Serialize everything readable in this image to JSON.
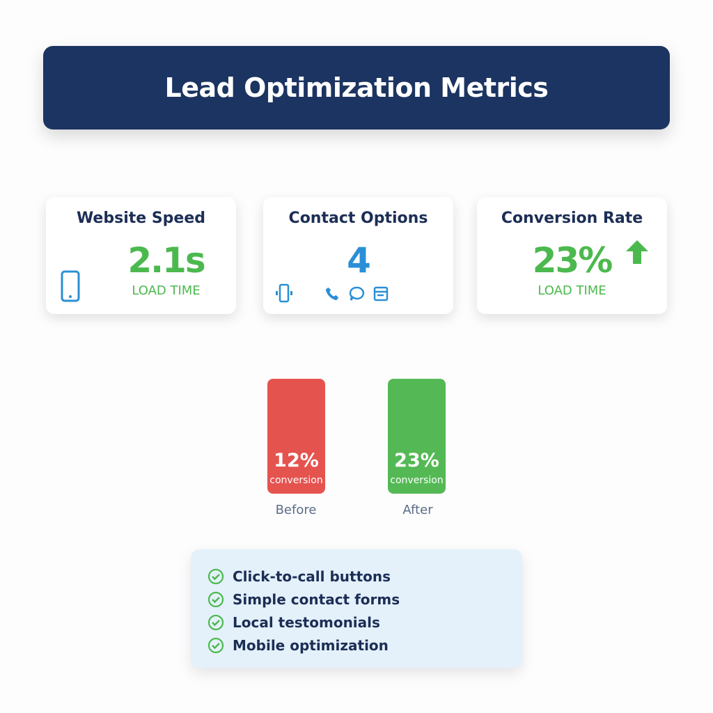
{
  "title": "Lead Optimization Metrics",
  "cards": [
    {
      "title": "Website Speed",
      "value": "2.1s",
      "caption": "LOAD TIME",
      "icon": "smartphone-icon"
    },
    {
      "title": "Contact Options",
      "value": "4",
      "icons": [
        "phone-vibrate-icon",
        "phone-icon",
        "chat-bubble-icon",
        "form-icon"
      ]
    },
    {
      "title": "Conversion Rate",
      "value": "23%",
      "caption": "LOAD TIME",
      "icon": "arrow-up-icon"
    }
  ],
  "comparison": [
    {
      "label": "Before",
      "value": "12%",
      "caption": "conversion",
      "color": "#e5534f"
    },
    {
      "label": "After",
      "value": "23%",
      "caption": "conversion",
      "color": "#54b955"
    }
  ],
  "checklist": [
    "Click-to-call buttons",
    "Simple contact forms",
    "Local testomonials",
    "Mobile optimization"
  ],
  "colors": {
    "header": "#1c3461",
    "green": "#4cb94e",
    "blue": "#2a8fd6",
    "red": "#e5534f"
  }
}
